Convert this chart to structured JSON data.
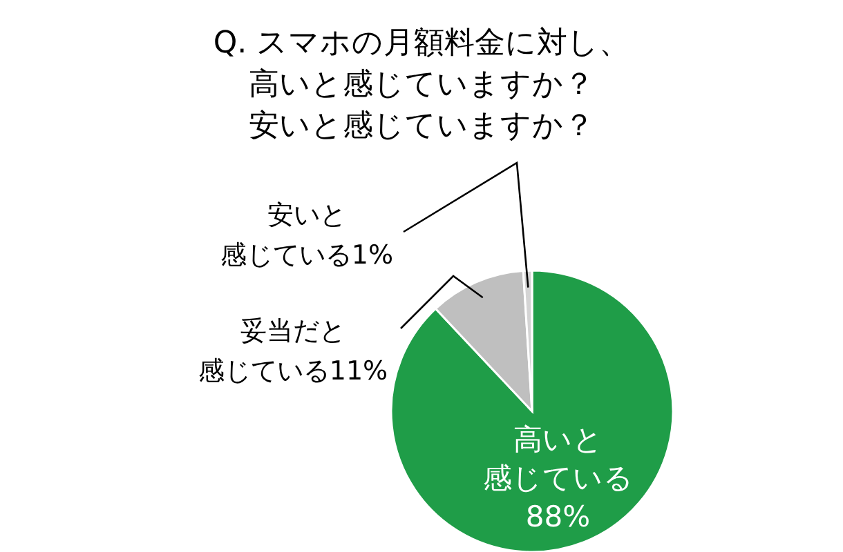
{
  "chart_data": {
    "type": "pie",
    "title": "Q. スマホの月額料金に対し、高いと感じていますか？安いと感じていますか？",
    "categories": [
      "高いと感じている",
      "妥当だと感じている",
      "安いと感じている"
    ],
    "values": [
      88,
      11,
      1
    ],
    "value_labels": [
      "88%",
      "11%",
      "1%"
    ],
    "colors": [
      "#1f9d48",
      "#bfbfbf",
      "#d4d4d4"
    ]
  }
}
